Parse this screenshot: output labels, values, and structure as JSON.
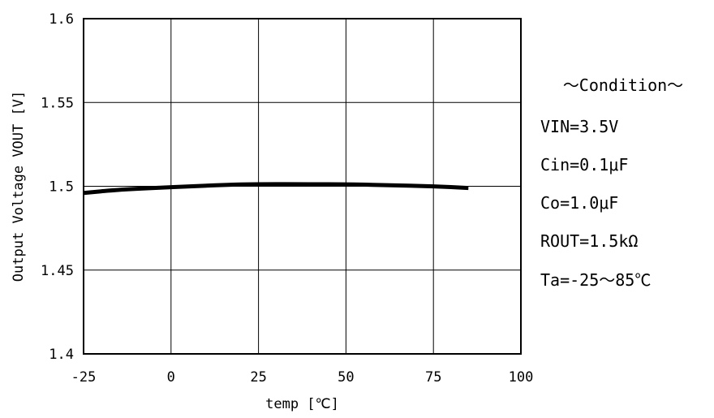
{
  "chart_data": {
    "type": "line",
    "xlabel": "temp [℃]",
    "ylabel": "Output Voltage  VOUT [V]",
    "xlim": [
      -25,
      100
    ],
    "ylim": [
      1.4,
      1.6
    ],
    "x_ticks": [
      "-25",
      "0",
      "25",
      "50",
      "75",
      "100"
    ],
    "y_ticks": [
      "1.4",
      "1.45",
      "1.5",
      "1.55",
      "1.6"
    ],
    "grid": true,
    "series": [
      {
        "x": [
          -25,
          -15,
          0,
          15,
          25,
          40,
          50,
          65,
          75,
          85
        ],
        "y": [
          1.496,
          1.498,
          1.4995,
          1.5008,
          1.5013,
          1.5012,
          1.5012,
          1.5005,
          1.5,
          1.499
        ]
      }
    ],
    "condition": {
      "title": "～Condition～",
      "lines": [
        "VIN=3.5V",
        "Cin=0.1μF",
        "Co=1.0μF",
        "ROUT=1.5kΩ",
        "Ta=-25～85℃"
      ]
    }
  }
}
